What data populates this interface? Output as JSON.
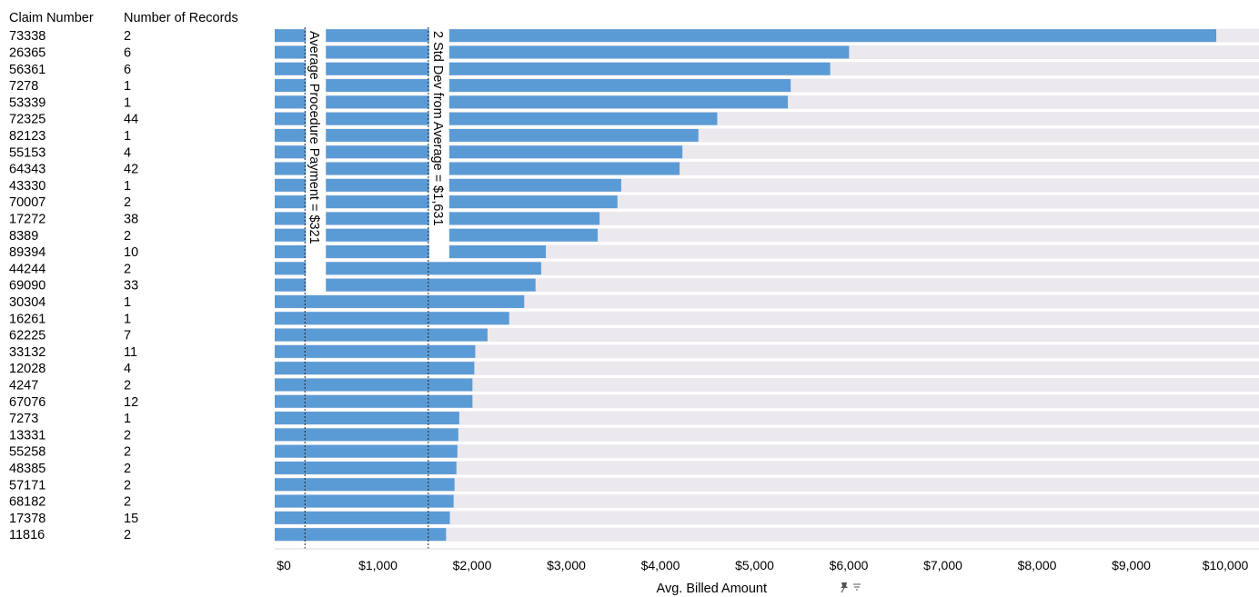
{
  "chart_data": {
    "type": "bar",
    "orientation": "horizontal",
    "columns": [
      "Claim Number",
      "Number of Records"
    ],
    "categories": [
      "73338",
      "26365",
      "56361",
      "7278",
      "53339",
      "72325",
      "82123",
      "55153",
      "64343",
      "43330",
      "70007",
      "17272",
      "8389",
      "89394",
      "44244",
      "69090",
      "30304",
      "16261",
      "62225",
      "33132",
      "12028",
      "4247",
      "67076",
      "7273",
      "13331",
      "55258",
      "48385",
      "57171",
      "68182",
      "17378",
      "11816"
    ],
    "records": [
      "2",
      "6",
      "6",
      "1",
      "1",
      "44",
      "1",
      "4",
      "42",
      "1",
      "2",
      "38",
      "2",
      "10",
      "2",
      "33",
      "1",
      "1",
      "7",
      "11",
      "4",
      "2",
      "12",
      "1",
      "2",
      "2",
      "2",
      "2",
      "2",
      "15",
      "2"
    ],
    "values": [
      10000,
      6100,
      5900,
      5480,
      5450,
      4700,
      4500,
      4330,
      4300,
      3680,
      3640,
      3450,
      3430,
      2880,
      2830,
      2770,
      2650,
      2490,
      2260,
      2130,
      2120,
      2100,
      2100,
      1960,
      1950,
      1940,
      1930,
      1910,
      1900,
      1860,
      1820
    ],
    "xlabel": "Avg. Billed Amount",
    "xlim": [
      0,
      10000
    ],
    "xticks": [
      0,
      1000,
      2000,
      3000,
      4000,
      5000,
      6000,
      7000,
      8000,
      9000,
      10000
    ],
    "xtick_labels": [
      "$0",
      "$1,000",
      "$2,000",
      "$3,000",
      "$4,000",
      "$5,000",
      "$6,000",
      "$7,000",
      "$8,000",
      "$9,000",
      "$10,000"
    ],
    "reference_lines": [
      {
        "value": 321,
        "label": "Average Procedure Payment = $321"
      },
      {
        "value": 1631,
        "label": "2 Std Dev from Average = $1,631"
      }
    ],
    "bar_color": "#5b9bd5",
    "band_color": "#ebe8ee",
    "grid": false
  }
}
